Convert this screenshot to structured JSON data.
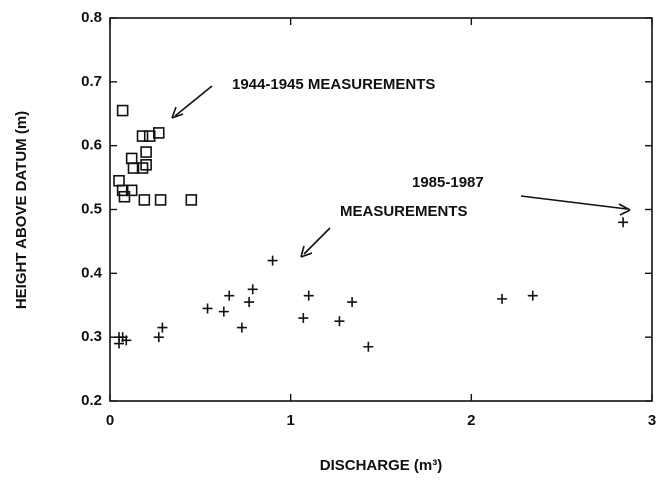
{
  "chart_data": {
    "type": "scatter",
    "xlabel": "DISCHARGE (m³)",
    "ylabel": "HEIGHT ABOVE DATUM (m)",
    "xlim": [
      0,
      3
    ],
    "xticks": [
      0,
      1,
      2,
      3
    ],
    "ylim": [
      0.2,
      0.8
    ],
    "yticks": [
      0.2,
      0.3,
      0.4,
      0.5,
      0.6,
      0.7,
      0.8
    ],
    "annotations": [
      "1944-1945 MEASUREMENTS",
      "1985-1987",
      "MEASUREMENTS"
    ],
    "series": [
      {
        "marker": "square",
        "color": "#111111",
        "x": [
          0.07,
          0.12,
          0.13,
          0.18,
          0.22,
          0.27,
          0.2,
          0.18,
          0.2,
          0.05,
          0.07,
          0.12,
          0.08,
          0.19,
          0.28,
          0.45
        ],
        "values": [
          0.655,
          0.58,
          0.565,
          0.615,
          0.615,
          0.62,
          0.59,
          0.565,
          0.57,
          0.545,
          0.53,
          0.53,
          0.52,
          0.515,
          0.515,
          0.515
        ]
      },
      {
        "marker": "plus",
        "color": "#111111",
        "x": [
          0.05,
          0.07,
          0.09,
          0.05,
          0.27,
          0.29,
          0.54,
          0.63,
          0.66,
          0.73,
          0.77,
          0.79,
          0.9,
          1.07,
          1.1,
          1.27,
          1.34,
          1.43,
          2.17,
          2.34,
          2.84
        ],
        "values": [
          0.29,
          0.3,
          0.295,
          0.3,
          0.3,
          0.315,
          0.345,
          0.34,
          0.365,
          0.315,
          0.355,
          0.375,
          0.42,
          0.33,
          0.365,
          0.325,
          0.355,
          0.285,
          0.36,
          0.365,
          0.48
        ]
      }
    ]
  }
}
